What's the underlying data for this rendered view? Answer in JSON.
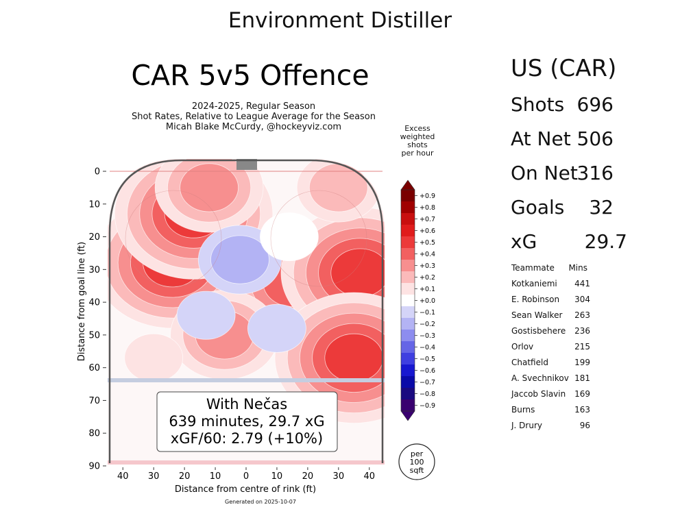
{
  "page_title": "Environment Distiller",
  "chart_data": {
    "type": "heatmap",
    "title": "CAR 5v5 Offence",
    "subtitle_lines": [
      "2024-2025, Regular Season",
      "Shot Rates, Relative to League Average for the Season",
      "Micah Blake McCurdy, @hockeyviz.com"
    ],
    "xlabel": "Distance from centre of rink (ft)",
    "ylabel": "Distance from goal line (ft)",
    "x_ticks": [
      "40",
      "30",
      "20",
      "10",
      "0",
      "10",
      "20",
      "30",
      "40"
    ],
    "y_ticks": [
      "0",
      "10",
      "20",
      "30",
      "40",
      "50",
      "60",
      "70",
      "80",
      "90"
    ],
    "xlim": [
      -42.5,
      42.5
    ],
    "ylim": [
      0,
      90
    ],
    "colorbar": {
      "title_lines": [
        "Excess",
        "weighted",
        "shots",
        "per hour"
      ],
      "ticks": [
        "+0.9",
        "+0.8",
        "+0.7",
        "+0.6",
        "+0.5",
        "+0.4",
        "+0.3",
        "+0.2",
        "+0.1",
        "+0.0",
        "−0.1",
        "−0.2",
        "−0.3",
        "−0.4",
        "−0.5",
        "−0.6",
        "−0.7",
        "−0.8",
        "−0.9"
      ],
      "levels": [
        0.9,
        0.8,
        0.7,
        0.6,
        0.5,
        0.4,
        0.3,
        0.2,
        0.1,
        0.0,
        -0.1,
        -0.2,
        -0.3,
        -0.4,
        -0.5,
        -0.6,
        -0.7,
        -0.8,
        -0.9
      ]
    },
    "hotspots": [
      {
        "x": -24,
        "y": 28,
        "peak": 0.5
      },
      {
        "x": -17,
        "y": 13,
        "peak": 0.5
      },
      {
        "x": -12,
        "y": 5,
        "peak": 0.3
      },
      {
        "x": 15,
        "y": 34,
        "peak": 0.4
      },
      {
        "x": 37,
        "y": 31,
        "peak": 0.5
      },
      {
        "x": 35,
        "y": 57,
        "peak": 0.5
      },
      {
        "x": -7,
        "y": 50,
        "peak": 0.3
      },
      {
        "x": 30,
        "y": 5,
        "peak": 0.2
      },
      {
        "x": -30,
        "y": 57,
        "peak": 0.1
      }
    ],
    "coldspots": [
      {
        "x": -2,
        "y": 27,
        "peak": -0.2
      },
      {
        "x": -13,
        "y": 44,
        "peak": -0.1
      },
      {
        "x": 10,
        "y": 48,
        "peak": -0.1
      },
      {
        "x": 14,
        "y": 20,
        "peak": 0.0
      }
    ],
    "annotation_lines": [
      "With Nečas",
      "639 minutes, 29.7 xG",
      "xGF/60: 2.79 (+10%)"
    ],
    "scale_badge_lines": [
      "per",
      "100",
      "sqft"
    ]
  },
  "stats": {
    "header": "US (CAR)",
    "rows": [
      {
        "label": "Shots",
        "value": "696"
      },
      {
        "label": "At Net",
        "value": "506"
      },
      {
        "label": "On Net",
        "value": "316"
      },
      {
        "label": "Goals",
        "value": "32"
      },
      {
        "label": "xG",
        "value": "29.7"
      }
    ]
  },
  "teammates": {
    "headers": [
      "Teammate",
      "Mins"
    ],
    "rows": [
      {
        "name": "Kotkaniemi",
        "mins": "441"
      },
      {
        "name": "E. Robinson",
        "mins": "304"
      },
      {
        "name": "Sean Walker",
        "mins": "263"
      },
      {
        "name": "Gostisbehere",
        "mins": "236"
      },
      {
        "name": "Orlov",
        "mins": "215"
      },
      {
        "name": "Chatfield",
        "mins": "199"
      },
      {
        "name": "A. Svechnikov",
        "mins": "181"
      },
      {
        "name": "Jaccob Slavin",
        "mins": "169"
      },
      {
        "name": "Burns",
        "mins": "163"
      },
      {
        "name": "J. Drury",
        "mins": "96"
      }
    ]
  },
  "generated_note": "Generated on 2025-10-07",
  "colors": {
    "pos": [
      "#fde3e3",
      "#fbbaba",
      "#f78f8f",
      "#f26060",
      "#ec3a3a",
      "#e01c1c",
      "#c80f0f",
      "#a00000",
      "#7a0000"
    ],
    "neg": [
      "#d4d4f8",
      "#b3b3f4",
      "#8d8def",
      "#6565e6",
      "#3f3fe0",
      "#1818d0",
      "#0a0aa8",
      "#1a0a80",
      "#3a0070"
    ],
    "zero": "#ffffff"
  }
}
